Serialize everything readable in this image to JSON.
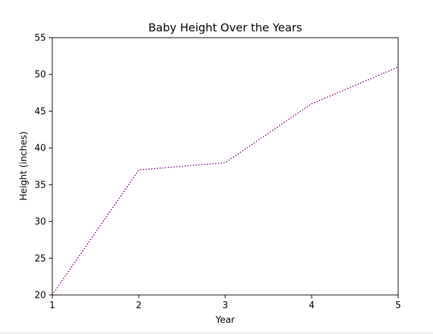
{
  "chart_data": {
    "type": "line",
    "title": "Baby Height Over the Years",
    "xlabel": "Year",
    "ylabel": "Height (inches)",
    "x": [
      1,
      2,
      3,
      4,
      5
    ],
    "series": [
      {
        "values": [
          20,
          37,
          38,
          46,
          51
        ],
        "color": "#800080",
        "linestyle": "dotted"
      }
    ],
    "xlim": [
      1,
      5
    ],
    "ylim": [
      20,
      55
    ],
    "xticks": [
      "1",
      "2",
      "3",
      "4",
      "5"
    ],
    "yticks": [
      "20",
      "25",
      "30",
      "35",
      "40",
      "45",
      "50",
      "55"
    ],
    "grid": false
  }
}
